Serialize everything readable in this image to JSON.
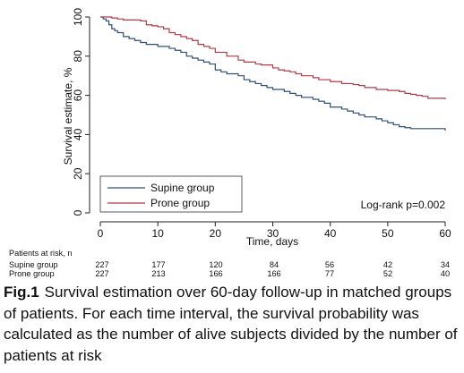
{
  "chart_data": {
    "type": "line",
    "xlabel": "Time, days",
    "ylabel": "Survival estimate, %",
    "xlim": [
      0,
      60
    ],
    "ylim": [
      0,
      100
    ],
    "x_ticks": [
      0,
      10,
      20,
      30,
      40,
      50,
      60
    ],
    "y_ticks": [
      0,
      20,
      40,
      60,
      80,
      100
    ],
    "grid": false,
    "step": true,
    "legend_position": "bottom-left",
    "annotation": "Log-rank p=0.002",
    "series": [
      {
        "name": "Supine group",
        "color": "#2f4f78",
        "x": [
          0,
          0.5,
          1,
          1.5,
          2,
          2.5,
          3,
          4,
          5,
          6,
          7,
          8,
          10,
          12,
          13,
          14,
          15,
          16,
          17,
          18,
          19,
          20,
          21,
          22,
          24,
          25,
          26,
          27,
          28,
          29,
          30,
          32,
          33,
          34,
          35,
          37,
          38,
          39,
          40,
          42,
          43,
          44,
          45,
          46,
          48,
          49,
          50,
          51,
          52,
          53,
          54,
          55,
          56,
          58,
          59,
          60
        ],
        "y": [
          100,
          99,
          98,
          96,
          94,
          93,
          92,
          90,
          89,
          88,
          87,
          86,
          85,
          84,
          83,
          82,
          80,
          79,
          78,
          77,
          76,
          73,
          72,
          71,
          70,
          68,
          67,
          66,
          65,
          64,
          63,
          62,
          61,
          60,
          59,
          58,
          57,
          56,
          54,
          53,
          52,
          51,
          50,
          49,
          48,
          47,
          46,
          45,
          44,
          43.5,
          43,
          43,
          43,
          43,
          43,
          42
        ]
      },
      {
        "name": "Prone group",
        "color": "#b23a48",
        "x": [
          0,
          2,
          3,
          4,
          7,
          8,
          9,
          10,
          11,
          12,
          13,
          14,
          15,
          16,
          17,
          18,
          19,
          20,
          22,
          24,
          25,
          27,
          28,
          30,
          31,
          32,
          33,
          34,
          35,
          37,
          38,
          40,
          42,
          44,
          45,
          46,
          48,
          50,
          52,
          53,
          54,
          55,
          56,
          57,
          60
        ],
        "y": [
          100,
          99.5,
          99,
          98.5,
          98,
          96,
          95.5,
          95,
          94,
          92,
          91,
          90,
          89,
          88,
          86,
          85,
          84,
          82,
          80,
          78,
          77,
          76,
          75.5,
          74,
          73,
          72.5,
          72,
          71,
          70,
          69,
          68,
          67,
          66,
          65.5,
          65,
          64,
          63,
          62.5,
          62,
          61,
          60.5,
          60,
          59.5,
          58.5,
          58
        ]
      }
    ]
  },
  "risk_table": {
    "title": "Patients at risk, n",
    "rows": [
      {
        "label": "Supine group",
        "values": [
          "227",
          "177",
          "120",
          "84",
          "56",
          "42",
          "34"
        ]
      },
      {
        "label": "Prone group",
        "values": [
          "227",
          "213",
          "166",
          "166",
          "77",
          "52",
          "40"
        ]
      }
    ]
  },
  "caption": {
    "label": "Fig.1",
    "text": "Survival estimation over 60-day follow-up in matched groups of patients. For each time interval, the survival probability was calculated as the number of alive subjects divided by the number of patients at risk"
  }
}
